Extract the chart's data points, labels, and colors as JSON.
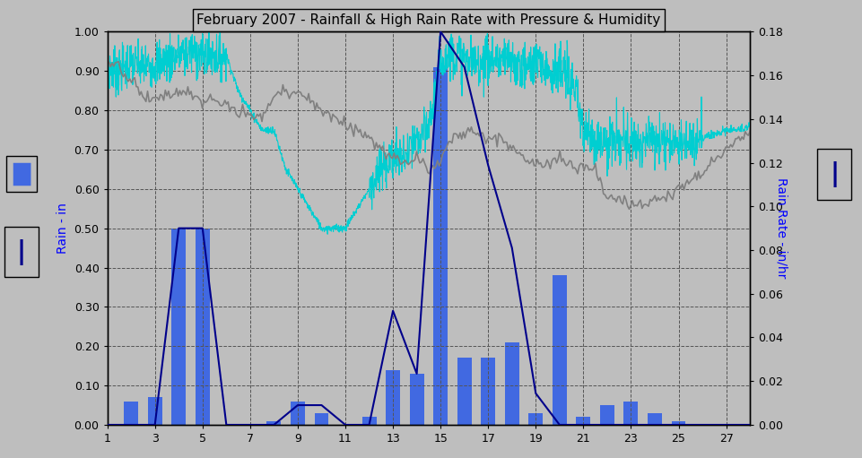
{
  "title": "February 2007 - Rainfall & High Rain Rate with Pressure & Humidity",
  "bg_color": "#BEBEBE",
  "plot_bg_color": "#BEBEBE",
  "left_ylabel": "Rain - in",
  "right_ylabel": "Rain Rate - in/hr",
  "xlim": [
    1,
    28
  ],
  "ylim_left": [
    0.0,
    1.0
  ],
  "ylim_right": [
    0.0,
    0.18
  ],
  "xticks": [
    1,
    3,
    5,
    7,
    9,
    11,
    13,
    15,
    17,
    19,
    21,
    23,
    25,
    27
  ],
  "yticks_left": [
    0.0,
    0.1,
    0.2,
    0.3,
    0.4,
    0.5,
    0.6,
    0.7,
    0.8,
    0.9,
    1.0
  ],
  "yticks_right": [
    0.0,
    0.02,
    0.04,
    0.06,
    0.08,
    0.1,
    0.12,
    0.14,
    0.16,
    0.18
  ],
  "bar_color": "#4169E1",
  "line_color": "#00008B",
  "humidity_color": "#00CED1",
  "pressure_color": "#808080",
  "rain_days": [
    2,
    3,
    4,
    5,
    8,
    9,
    10,
    12,
    13,
    14,
    15,
    16,
    17,
    18,
    19,
    20,
    21,
    22,
    23,
    24,
    25
  ],
  "rain_vals": [
    0.06,
    0.07,
    0.5,
    0.5,
    0.01,
    0.06,
    0.03,
    0.02,
    0.14,
    0.13,
    0.91,
    0.17,
    0.17,
    0.21,
    0.03,
    0.38,
    0.02,
    0.05,
    0.06,
    0.03,
    0.01
  ],
  "rain_rate_days": [
    1,
    2,
    3,
    4,
    5,
    6,
    7,
    8,
    9,
    10,
    11,
    12,
    13,
    14,
    15,
    16,
    17,
    18,
    19,
    20,
    21,
    22,
    23,
    24,
    25,
    26,
    27,
    28
  ],
  "rain_rate_vals": [
    0.0,
    0.0,
    0.0,
    0.5,
    0.5,
    0.0,
    0.0,
    0.0,
    0.05,
    0.05,
    0.0,
    0.0,
    0.29,
    0.13,
    1.0,
    0.91,
    0.66,
    0.45,
    0.08,
    0.0,
    0.0,
    0.0,
    0.0,
    0.0,
    0.0,
    0.0,
    0.0,
    0.0
  ]
}
